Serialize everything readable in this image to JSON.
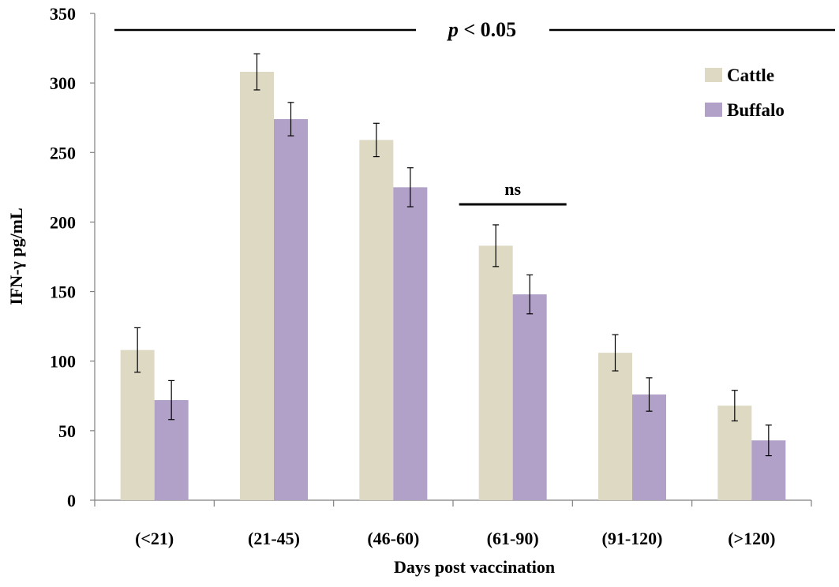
{
  "chart_data": {
    "type": "bar",
    "title": "",
    "xlabel": "Days post vaccination",
    "ylabel": "IFN-γ pg/mL",
    "ylim": [
      0,
      350
    ],
    "yticks": [
      0,
      50,
      100,
      150,
      200,
      250,
      300,
      350
    ],
    "grid": false,
    "legend_position": "top-right",
    "categories": [
      "(<21)",
      "(21-45)",
      "(46-60)",
      "(61-90)",
      "(91-120)",
      "(>120)"
    ],
    "series": [
      {
        "name": "Cattle",
        "color": "#ddd9c3",
        "values": [
          108,
          308,
          259,
          183,
          106,
          68
        ],
        "errors": [
          16,
          13,
          12,
          15,
          13,
          11
        ]
      },
      {
        "name": "Buffalo",
        "color": "#b1a0c7",
        "values": [
          72,
          274,
          225,
          148,
          76,
          43
        ],
        "errors": [
          14,
          12,
          14,
          14,
          12,
          11
        ]
      }
    ],
    "annotations": {
      "top_significance": "< 0.05",
      "top_significance_symbol": "p",
      "ns_label": "ns",
      "ns_category": "(61-90)"
    }
  }
}
